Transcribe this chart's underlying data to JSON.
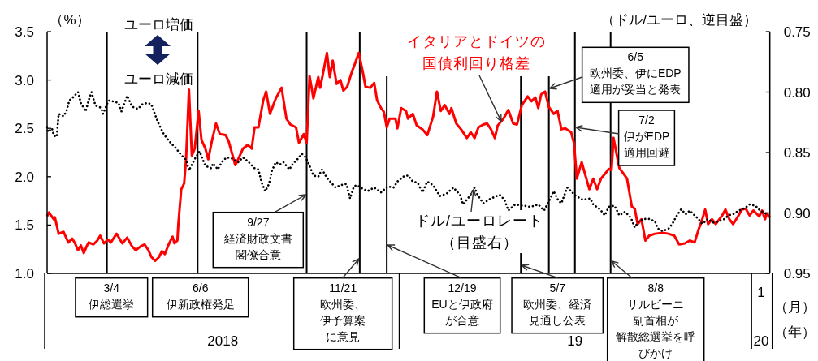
{
  "chart_data": {
    "type": "line",
    "ylabel": "（%）",
    "y2label": "（ドル/ユーロ、逆目盛）",
    "xlim": [
      "2018-01-01",
      "2020-01-20"
    ],
    "xticks": [
      {
        "value": "2018-07-02",
        "label": "2018"
      },
      {
        "value": "2019-01-01",
        "label": null
      },
      {
        "value": "2019-07-02",
        "label": "19"
      },
      {
        "value": "2020-01-01",
        "label": null
      },
      {
        "value": "2020-01-11",
        "label": "20"
      }
    ],
    "ylim": [
      1,
      3.5
    ],
    "yticks": [
      {
        "value": 1,
        "label": "1.0"
      },
      1.5,
      {
        "value": 2,
        "label": "2.0"
      },
      2.5,
      {
        "value": 3,
        "label": "3.0"
      },
      3.5
    ],
    "y2lim": [
      0.95,
      0.75
    ],
    "y2ticks": [
      0.75,
      {
        "value": 0.8,
        "label": "0.80"
      },
      0.85,
      {
        "value": 0.9,
        "label": "0.90"
      },
      0.95
    ],
    "series": [
      {
        "name": "イタリアとドイツの国債利回り格差",
        "color": "#ff0000",
        "line_style": "solid",
        "x": [
          "2018-01-01",
          "2018-01-03",
          "2018-01-05",
          "2018-01-08",
          "2018-01-09",
          "2018-01-13",
          "2018-01-18",
          "2018-01-23",
          "2018-01-27",
          "2018-01-30",
          "2018-02-02",
          "2018-02-05",
          "2018-02-08",
          "2018-02-11",
          "2018-02-13",
          "2018-02-18",
          "2018-02-22",
          "2018-02-25",
          "2018-03-01",
          "2018-03-05",
          "2018-03-08",
          "2018-03-14",
          "2018-03-20",
          "2018-03-25",
          "2018-03-30",
          "2018-04-03",
          "2018-04-08",
          "2018-04-12",
          "2018-04-16",
          "2018-04-19",
          "2018-04-23",
          "2018-04-27",
          "2018-04-30",
          "2018-05-03",
          "2018-05-07",
          "2018-05-11",
          "2018-05-13",
          "2018-05-16",
          "2018-05-17",
          "2018-05-20",
          "2018-05-23",
          "2018-05-25",
          "2018-05-28",
          "2018-05-31",
          "2018-06-03",
          "2018-06-07",
          "2018-06-10",
          "2018-06-14",
          "2018-06-17",
          "2018-06-21",
          "2018-06-25",
          "2018-06-29",
          "2018-07-05",
          "2018-07-08",
          "2018-07-15",
          "2018-07-18",
          "2018-07-23",
          "2018-07-28",
          "2018-08-01",
          "2018-08-04",
          "2018-08-08",
          "2018-08-13",
          "2018-08-16",
          "2018-08-20",
          "2018-08-26",
          "2018-09-01",
          "2018-09-06",
          "2018-09-10",
          "2018-09-16",
          "2018-09-19",
          "2018-09-24",
          "2018-09-27",
          "2018-09-30",
          "2018-10-04",
          "2018-10-09",
          "2018-10-11",
          "2018-10-14",
          "2018-10-18",
          "2018-10-21",
          "2018-10-24",
          "2018-10-28",
          "2018-11-01",
          "2018-11-04",
          "2018-11-08",
          "2018-11-13",
          "2018-11-15",
          "2018-11-20",
          "2018-11-24",
          "2018-11-27",
          "2018-12-02",
          "2018-12-06",
          "2018-12-09",
          "2018-12-13",
          "2018-12-16",
          "2018-12-19",
          "2018-12-22",
          "2018-12-28",
          "2018-12-30",
          "2019-01-03",
          "2019-01-08",
          "2019-01-10",
          "2019-01-15",
          "2019-01-19",
          "2019-01-25",
          "2019-01-30",
          "2019-02-05",
          "2019-02-09",
          "2019-02-13",
          "2019-02-17",
          "2019-02-22",
          "2019-02-24",
          "2019-03-01",
          "2019-03-06",
          "2019-03-12",
          "2019-03-16",
          "2019-03-20",
          "2019-03-24",
          "2019-03-29",
          "2019-04-02",
          "2019-04-06",
          "2019-04-10",
          "2019-04-13",
          "2019-04-19",
          "2019-04-24",
          "2019-04-29",
          "2019-05-03",
          "2019-05-08",
          "2019-05-14",
          "2019-05-18",
          "2019-05-22",
          "2019-05-25",
          "2019-05-28",
          "2019-06-01",
          "2019-06-05",
          "2019-06-10",
          "2019-06-14",
          "2019-06-18",
          "2019-06-22",
          "2019-06-28",
          "2019-07-01",
          "2019-07-04",
          "2019-07-09",
          "2019-07-13",
          "2019-07-17",
          "2019-07-21",
          "2019-07-25",
          "2019-07-29",
          "2019-08-03",
          "2019-08-06",
          "2019-08-09",
          "2019-08-11",
          "2019-08-17",
          "2019-08-20",
          "2019-08-25",
          "2019-08-30",
          "2019-09-02",
          "2019-09-05",
          "2019-09-09",
          "2019-09-13",
          "2019-09-17",
          "2019-09-23",
          "2019-10-01",
          "2019-10-07",
          "2019-10-13",
          "2019-10-18",
          "2019-10-24",
          "2019-10-29",
          "2019-11-03",
          "2019-11-07",
          "2019-11-10",
          "2019-11-14",
          "2019-11-17",
          "2019-11-21",
          "2019-11-25",
          "2019-12-01",
          "2019-12-05",
          "2019-12-09",
          "2019-12-13",
          "2019-12-18",
          "2019-12-22",
          "2019-12-26",
          "2019-12-30",
          "2020-01-03",
          "2020-01-09",
          "2020-01-12",
          "2020-01-15",
          "2020-01-17",
          "2020-01-20"
        ],
        "values": [
          1.59,
          1.63,
          1.6,
          1.56,
          1.58,
          1.41,
          1.43,
          1.32,
          1.36,
          1.31,
          1.24,
          1.29,
          1.21,
          1.28,
          1.32,
          1.3,
          1.34,
          1.39,
          1.31,
          1.35,
          1.32,
          1.41,
          1.31,
          1.37,
          1.28,
          1.24,
          1.28,
          1.3,
          1.24,
          1.17,
          1.13,
          1.17,
          1.23,
          1.2,
          1.3,
          1.38,
          1.31,
          1.34,
          1.51,
          1.87,
          1.93,
          2.18,
          2.9,
          2.22,
          2.29,
          2.68,
          2.38,
          2.29,
          2.18,
          2.38,
          2.55,
          2.44,
          2.43,
          2.37,
          2.12,
          2.18,
          2.29,
          2.33,
          2.29,
          2.51,
          2.51,
          2.79,
          2.88,
          2.65,
          2.81,
          2.92,
          2.6,
          2.54,
          2.51,
          2.35,
          2.44,
          2.35,
          3.04,
          2.81,
          3.03,
          2.92,
          3.07,
          3.28,
          3.03,
          3.2,
          2.96,
          3.0,
          2.89,
          2.93,
          3.09,
          3.14,
          3.28,
          3.09,
          2.93,
          2.92,
          2.97,
          2.79,
          2.71,
          2.67,
          2.51,
          2.6,
          2.6,
          2.5,
          2.71,
          2.68,
          2.6,
          2.65,
          2.53,
          2.49,
          2.43,
          2.62,
          2.88,
          2.68,
          2.74,
          2.65,
          2.71,
          2.55,
          2.49,
          2.4,
          2.46,
          2.4,
          2.51,
          2.54,
          2.55,
          2.49,
          2.4,
          2.53,
          2.6,
          2.69,
          2.55,
          2.54,
          2.74,
          2.83,
          2.78,
          2.82,
          2.71,
          2.85,
          2.88,
          2.72,
          2.65,
          2.68,
          2.49,
          2.5,
          2.46,
          2.35,
          1.98,
          2.15,
          2.01,
          1.87,
          1.98,
          1.87,
          1.98,
          2.04,
          2.08,
          2.07,
          2.4,
          2.09,
          2.05,
          1.98,
          1.69,
          1.67,
          1.51,
          1.56,
          1.34,
          1.39,
          1.41,
          1.42,
          1.41,
          1.39,
          1.3,
          1.31,
          1.34,
          1.32,
          1.45,
          1.53,
          1.66,
          1.51,
          1.56,
          1.51,
          1.59,
          1.66,
          1.56,
          1.51,
          1.59,
          1.66,
          1.67,
          1.6,
          1.65,
          1.59,
          1.65,
          1.56,
          1.62,
          1.58
        ]
      },
      {
        "name": "ドル/ユーロレート（目盛右）",
        "color": "#000000",
        "line_style": "dotted",
        "axis": "y2",
        "x": [
          "2018-01-01",
          "2018-01-02",
          "2018-01-06",
          "2018-01-08",
          "2018-01-11",
          "2018-01-13",
          "2018-01-18",
          "2018-01-21",
          "2018-01-24",
          "2018-01-27",
          "2018-02-02",
          "2018-02-05",
          "2018-02-10",
          "2018-02-13",
          "2018-02-16",
          "2018-02-20",
          "2018-02-26",
          "2018-02-28",
          "2018-03-04",
          "2018-03-06",
          "2018-03-12",
          "2018-03-16",
          "2018-03-19",
          "2018-03-25",
          "2018-03-30",
          "2018-04-05",
          "2018-04-10",
          "2018-04-15",
          "2018-04-19",
          "2018-04-23",
          "2018-04-27",
          "2018-05-02",
          "2018-05-06",
          "2018-05-09",
          "2018-05-14",
          "2018-05-20",
          "2018-05-25",
          "2018-05-28",
          "2018-05-31",
          "2018-06-04",
          "2018-06-08",
          "2018-06-14",
          "2018-06-20",
          "2018-06-22",
          "2018-06-27",
          "2018-07-01",
          "2018-07-06",
          "2018-07-12",
          "2018-07-18",
          "2018-07-23",
          "2018-07-29",
          "2018-08-04",
          "2018-08-08",
          "2018-08-11",
          "2018-08-15",
          "2018-08-19",
          "2018-08-22",
          "2018-08-26",
          "2018-08-30",
          "2018-09-03",
          "2018-09-09",
          "2018-09-13",
          "2018-09-17",
          "2018-09-22",
          "2018-09-26",
          "2018-09-30",
          "2018-10-04",
          "2018-10-09",
          "2018-10-13",
          "2018-10-18",
          "2018-10-27",
          "2018-11-01",
          "2018-11-07",
          "2018-11-11",
          "2018-11-15",
          "2018-11-18",
          "2018-11-24",
          "2018-11-29",
          "2018-12-06",
          "2018-12-13",
          "2018-12-20",
          "2018-12-26",
          "2018-12-30",
          "2019-01-05",
          "2019-01-10",
          "2019-01-15",
          "2019-01-20",
          "2019-01-25",
          "2019-01-30",
          "2019-02-05",
          "2019-02-12",
          "2019-02-19",
          "2019-02-26",
          "2019-03-05",
          "2019-03-08",
          "2019-03-15",
          "2019-03-20",
          "2019-03-23",
          "2019-03-29",
          "2019-04-06",
          "2019-04-15",
          "2019-04-20",
          "2019-04-24",
          "2019-05-01",
          "2019-05-10",
          "2019-05-17",
          "2019-05-25",
          "2019-05-31",
          "2019-06-04",
          "2019-06-10",
          "2019-06-15",
          "2019-06-18",
          "2019-06-24",
          "2019-06-28",
          "2019-07-03",
          "2019-07-10",
          "2019-07-18",
          "2019-07-21",
          "2019-07-28",
          "2019-08-02",
          "2019-08-06",
          "2019-08-12",
          "2019-08-17",
          "2019-08-23",
          "2019-08-29",
          "2019-09-02",
          "2019-09-06",
          "2019-09-12",
          "2019-09-17",
          "2019-09-23",
          "2019-09-26",
          "2019-10-01",
          "2019-10-07",
          "2019-10-11",
          "2019-10-15",
          "2019-10-20",
          "2019-10-25",
          "2019-10-29",
          "2019-11-03",
          "2019-11-07",
          "2019-11-11",
          "2019-11-17",
          "2019-11-22",
          "2019-11-28",
          "2019-12-04",
          "2019-12-08",
          "2019-12-13",
          "2019-12-19",
          "2019-12-25",
          "2019-12-30",
          "2020-01-05",
          "2020-01-10",
          "2020-01-17"
        ],
        "values": [
          0.829,
          0.833,
          0.83,
          0.836,
          0.837,
          0.818,
          0.82,
          0.816,
          0.807,
          0.805,
          0.8,
          0.809,
          0.816,
          0.807,
          0.8,
          0.811,
          0.813,
          0.818,
          0.81,
          0.807,
          0.808,
          0.809,
          0.816,
          0.803,
          0.812,
          0.814,
          0.81,
          0.809,
          0.81,
          0.819,
          0.827,
          0.835,
          0.839,
          0.842,
          0.846,
          0.852,
          0.856,
          0.865,
          0.86,
          0.854,
          0.849,
          0.861,
          0.863,
          0.859,
          0.864,
          0.858,
          0.854,
          0.855,
          0.858,
          0.854,
          0.858,
          0.863,
          0.864,
          0.874,
          0.882,
          0.876,
          0.865,
          0.858,
          0.86,
          0.858,
          0.864,
          0.859,
          0.856,
          0.851,
          0.854,
          0.861,
          0.869,
          0.87,
          0.864,
          0.871,
          0.879,
          0.877,
          0.876,
          0.888,
          0.878,
          0.877,
          0.88,
          0.882,
          0.879,
          0.883,
          0.878,
          0.879,
          0.874,
          0.87,
          0.869,
          0.874,
          0.875,
          0.883,
          0.874,
          0.877,
          0.886,
          0.884,
          0.879,
          0.885,
          0.893,
          0.886,
          0.879,
          0.885,
          0.892,
          0.888,
          0.885,
          0.889,
          0.898,
          0.893,
          0.894,
          0.895,
          0.893,
          0.898,
          0.892,
          0.882,
          0.89,
          0.892,
          0.879,
          0.882,
          0.886,
          0.889,
          0.888,
          0.893,
          0.897,
          0.902,
          0.895,
          0.894,
          0.902,
          0.899,
          0.904,
          0.912,
          0.907,
          0.905,
          0.905,
          0.907,
          0.913,
          0.915,
          0.913,
          0.909,
          0.903,
          0.897,
          0.901,
          0.898,
          0.902,
          0.905,
          0.909,
          0.905,
          0.908,
          0.907,
          0.905,
          0.902,
          0.901,
          0.898,
          0.896,
          0.893,
          0.894,
          0.898,
          0.901
        ]
      }
    ],
    "ref_lines": [
      {
        "axis": "x",
        "value": "2018-03-04",
        "label": "3/4\n伊総選挙"
      },
      {
        "axis": "x",
        "value": "2018-06-06",
        "label": "6/6\n伊新政権発足"
      },
      {
        "axis": "x",
        "value": "2018-09-27",
        "label": "9/27\n経済財政文書閣僚合意"
      },
      {
        "axis": "x",
        "value": "2018-11-21",
        "label": "11/21\n欧州委、伊予算案に意見"
      },
      {
        "axis": "x",
        "value": "2018-12-19",
        "label": "12/19\nEUと伊政府が合意"
      },
      {
        "axis": "x",
        "value": "2019-05-07",
        "label": "5/7\n欧州委、経済見通し公表"
      },
      {
        "axis": "x",
        "value": "2019-06-05",
        "label": "6/5\n欧州委、伊にEDP適用が妥当と発表"
      },
      {
        "axis": "x",
        "value": "2019-07-02",
        "label": "7/2\n伊がEDP適用回避"
      },
      {
        "axis": "x",
        "value": "2019-08-08",
        "label": "8/8\nサルビーニ副首相が解散総選挙を呼びかけ"
      }
    ],
    "annotations": [
      "ユーロ増価",
      "ユーロ減価",
      "1",
      "（月）",
      "（年）"
    ]
  }
}
